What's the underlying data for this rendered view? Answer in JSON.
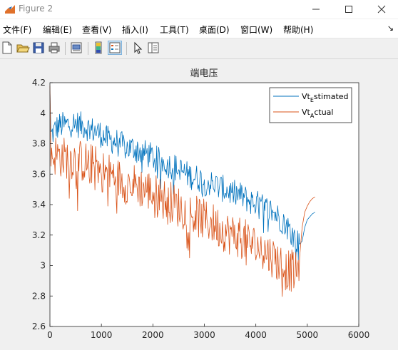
{
  "window": {
    "title": "Figure 2",
    "minimize_icon": "minimize-icon",
    "maximize_icon": "maximize-icon",
    "close_icon": "close-icon"
  },
  "menu": {
    "items": [
      "文件(F)",
      "编辑(E)",
      "查看(V)",
      "插入(I)",
      "工具(T)",
      "桌面(D)",
      "窗口(W)",
      "帮助(H)"
    ],
    "overflow_icon": "dock-arrow-icon"
  },
  "toolbar": {
    "buttons": [
      "new-figure-icon",
      "open-file-icon",
      "save-icon",
      "print-icon",
      "print-preview-icon",
      "colorbar-icon",
      "legend-icon",
      "pointer-icon",
      "property-editor-icon"
    ],
    "active": "legend-icon"
  },
  "chart_data": {
    "type": "line",
    "title": "端电压",
    "xlabel": "",
    "ylabel": "",
    "xlim": [
      0,
      6000
    ],
    "ylim": [
      2.6,
      4.2
    ],
    "xticks": [
      "0",
      "1000",
      "2000",
      "3000",
      "4000",
      "5000",
      "6000"
    ],
    "yticks": [
      "2.6",
      "2.8",
      "3",
      "3.2",
      "3.4",
      "3.6",
      "3.8",
      "4",
      "4.2"
    ],
    "grid": false,
    "legend_position": "top-right",
    "series": [
      {
        "name": "Vt_Estimated",
        "legend_main": "Vt",
        "legend_sub": "E",
        "legend_rest": "stimated",
        "color": "#0072bd",
        "x": [
          0,
          20,
          60,
          100,
          150,
          200,
          300,
          400,
          500,
          600,
          700,
          800,
          900,
          1000,
          1100,
          1200,
          1300,
          1400,
          1500,
          1600,
          1700,
          1800,
          1900,
          2000,
          2100,
          2200,
          2300,
          2400,
          2500,
          2600,
          2700,
          2800,
          2900,
          3000,
          3100,
          3200,
          3300,
          3400,
          3500,
          3600,
          3700,
          3800,
          3900,
          4000,
          4100,
          4200,
          4300,
          4400,
          4500,
          4600,
          4700,
          4750,
          4800,
          4850,
          4900,
          4950,
          5000,
          5050,
          5100,
          5150
        ],
        "y": [
          4.15,
          3.86,
          3.88,
          3.9,
          3.92,
          3.93,
          3.93,
          3.94,
          3.94,
          3.93,
          3.92,
          3.9,
          3.89,
          3.87,
          3.84,
          3.83,
          3.82,
          3.8,
          3.78,
          3.78,
          3.77,
          3.75,
          3.74,
          3.72,
          3.7,
          3.69,
          3.67,
          3.66,
          3.64,
          3.62,
          3.6,
          3.59,
          3.58,
          3.56,
          3.55,
          3.54,
          3.52,
          3.51,
          3.49,
          3.48,
          3.47,
          3.45,
          3.43,
          3.42,
          3.4,
          3.38,
          3.37,
          3.34,
          3.31,
          3.27,
          3.22,
          3.2,
          3.17,
          3.14,
          3.16,
          3.25,
          3.3,
          3.32,
          3.34,
          3.35
        ]
      },
      {
        "name": "Vt_Actual",
        "legend_main": "Vt",
        "legend_sub": "A",
        "legend_rest": "ctual",
        "color": "#d95319",
        "x": [
          0,
          20,
          60,
          100,
          150,
          200,
          300,
          400,
          500,
          600,
          700,
          800,
          900,
          1000,
          1100,
          1200,
          1300,
          1400,
          1500,
          1600,
          1700,
          1800,
          1900,
          2000,
          2100,
          2200,
          2300,
          2400,
          2500,
          2600,
          2700,
          2800,
          2900,
          3000,
          3100,
          3200,
          3300,
          3400,
          3500,
          3600,
          3700,
          3800,
          3900,
          4000,
          4100,
          4200,
          4300,
          4400,
          4500,
          4600,
          4700,
          4750,
          4800,
          4850,
          4900,
          4950,
          5000,
          5050,
          5100,
          5150
        ],
        "y": [
          4.18,
          3.75,
          3.74,
          3.74,
          3.74,
          3.73,
          3.72,
          3.72,
          3.71,
          3.7,
          3.69,
          3.68,
          3.66,
          3.64,
          3.62,
          3.61,
          3.59,
          3.57,
          3.55,
          3.55,
          3.54,
          3.52,
          3.51,
          3.49,
          3.47,
          3.45,
          3.44,
          3.42,
          3.4,
          3.38,
          3.36,
          3.34,
          3.33,
          3.31,
          3.3,
          3.28,
          3.26,
          3.24,
          3.22,
          3.21,
          3.2,
          3.18,
          3.16,
          3.14,
          3.12,
          3.1,
          3.08,
          3.05,
          3.02,
          2.98,
          2.98,
          2.97,
          2.95,
          3.05,
          3.25,
          3.35,
          3.39,
          3.42,
          3.44,
          3.45
        ]
      }
    ]
  }
}
